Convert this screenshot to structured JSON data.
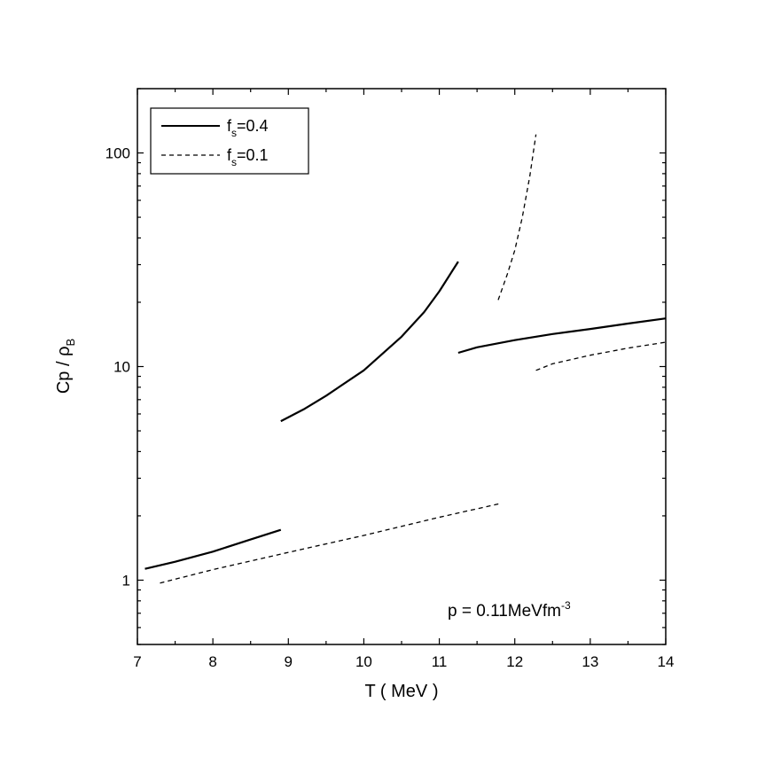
{
  "chart_data": {
    "type": "line",
    "xlabel": "T ( MeV )",
    "ylabel": {
      "main": "Cp / ρ",
      "sub": "B"
    },
    "xlim": [
      7,
      14
    ],
    "ylim": [
      0.5,
      200
    ],
    "yscale": "log",
    "x_ticks": [
      7,
      8,
      9,
      10,
      11,
      12,
      13,
      14
    ],
    "y_ticks": [
      1,
      10,
      100
    ],
    "y_tick_labels": [
      "1",
      "10",
      "100"
    ],
    "grid": false,
    "legend_position": "top-left",
    "annotation": {
      "main": "p = 0.11MeVfm",
      "sup": "-3"
    },
    "series": [
      {
        "name": {
          "main": "f",
          "sub": "s",
          "rest": "=0.4"
        },
        "style": "solid",
        "segments": [
          [
            [
              7.1,
              1.13
            ],
            [
              7.5,
              1.22
            ],
            [
              8.0,
              1.36
            ],
            [
              8.5,
              1.55
            ],
            [
              8.9,
              1.72
            ]
          ],
          [
            [
              8.9,
              5.55
            ],
            [
              9.2,
              6.3
            ],
            [
              9.5,
              7.3
            ],
            [
              10.0,
              9.6
            ],
            [
              10.5,
              13.8
            ],
            [
              10.8,
              18.0
            ],
            [
              11.0,
              22.5
            ],
            [
              11.25,
              31.0
            ]
          ],
          [
            [
              11.25,
              11.6
            ],
            [
              11.5,
              12.3
            ],
            [
              12.0,
              13.3
            ],
            [
              12.5,
              14.2
            ],
            [
              13.0,
              15.0
            ],
            [
              13.5,
              15.9
            ],
            [
              14.0,
              16.8
            ]
          ]
        ]
      },
      {
        "name": {
          "main": "f",
          "sub": "s",
          "rest": "=0.1"
        },
        "style": "dashed",
        "segments": [
          [
            [
              7.3,
              0.97
            ],
            [
              8.0,
              1.12
            ],
            [
              9.0,
              1.35
            ],
            [
              10.0,
              1.62
            ],
            [
              11.0,
              1.97
            ],
            [
              11.8,
              2.28
            ]
          ],
          [
            [
              11.78,
              20.5
            ],
            [
              11.9,
              27.0
            ],
            [
              12.0,
              35.0
            ],
            [
              12.1,
              50.0
            ],
            [
              12.2,
              78.0
            ],
            [
              12.28,
              122.0
            ]
          ],
          [
            [
              12.28,
              9.6
            ],
            [
              12.5,
              10.3
            ],
            [
              13.0,
              11.3
            ],
            [
              13.5,
              12.2
            ],
            [
              14.0,
              13.0
            ]
          ]
        ]
      }
    ]
  }
}
